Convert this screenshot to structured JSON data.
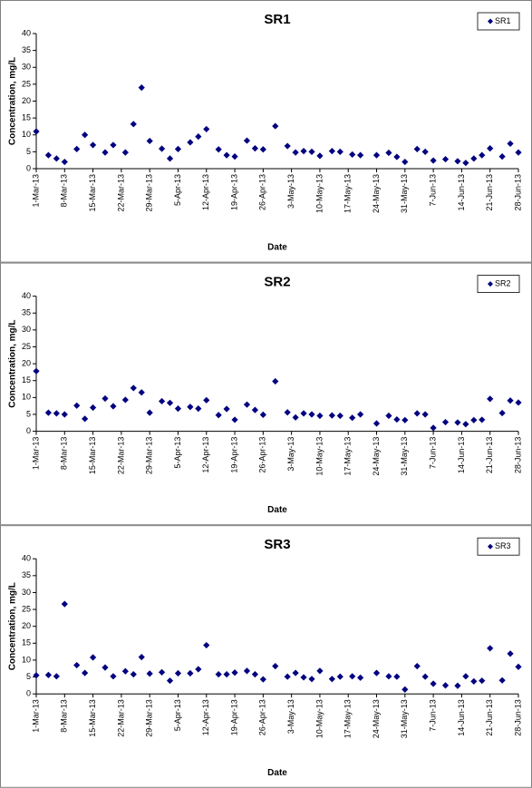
{
  "chart_data": [
    {
      "type": "scatter",
      "title": "SR1",
      "xlabel": "Date",
      "ylabel": "Concentration, mg/L",
      "legend": "upper right",
      "x": [
        "1-Mar-13",
        "4-Mar-13",
        "6-Mar-13",
        "8-Mar-13",
        "11-Mar-13",
        "13-Mar-13",
        "15-Mar-13",
        "18-Mar-13",
        "20-Mar-13",
        "23-Mar-13",
        "25-Mar-13",
        "27-Mar-13",
        "29-Mar-13",
        "1-Apr-13",
        "3-Apr-13",
        "5-Apr-13",
        "8-Apr-13",
        "10-Apr-13",
        "12-Apr-13",
        "15-Apr-13",
        "17-Apr-13",
        "19-Apr-13",
        "22-Apr-13",
        "24-Apr-13",
        "26-Apr-13",
        "29-Apr-13",
        "2-May-13",
        "4-May-13",
        "6-May-13",
        "8-May-13",
        "10-May-13",
        "13-May-13",
        "15-May-13",
        "18-May-13",
        "20-May-13",
        "24-May-13",
        "27-May-13",
        "29-May-13",
        "31-May-13",
        "3-Jun-13",
        "5-Jun-13",
        "7-Jun-13",
        "10-Jun-13",
        "13-Jun-13",
        "15-Jun-13",
        "17-Jun-13",
        "19-Jun-13",
        "21-Jun-13",
        "24-Jun-13",
        "26-Jun-13",
        "28-Jun-13"
      ],
      "series": [
        {
          "name": "SR1",
          "color": "#000080",
          "values": [
            11,
            4,
            3,
            2,
            5.8,
            10,
            7,
            4.8,
            7,
            4.8,
            13.2,
            24,
            8.2,
            5.9,
            3,
            5.8,
            7.8,
            9.5,
            11.7,
            5.7,
            4,
            3.6,
            8.3,
            6,
            5.7,
            12.6,
            6.7,
            4.8,
            5.2,
            5,
            3.8,
            5.2,
            5,
            4.2,
            4,
            4,
            4.7,
            3.5,
            2,
            5.8,
            5,
            2.4,
            2.8,
            2.2,
            1.7,
            3,
            4,
            6,
            3.6,
            7.4,
            4.8
          ]
        }
      ],
      "xlim": [
        "1-Mar-13",
        "28-Jun-13"
      ],
      "xticks": [
        "1-Mar-13",
        "8-Mar-13",
        "15-Mar-13",
        "22-Mar-13",
        "29-Mar-13",
        "5-Apr-13",
        "12-Apr-13",
        "19-Apr-13",
        "26-Apr-13",
        "3-May-13",
        "10-May-13",
        "17-May-13",
        "24-May-13",
        "31-May-13",
        "7-Jun-13",
        "14-Jun-13",
        "21-Jun-13",
        "28-Jun-13"
      ],
      "ylim": [
        0,
        40
      ],
      "yticks": [
        0,
        5,
        10,
        15,
        20,
        25,
        30,
        35,
        40
      ]
    },
    {
      "type": "scatter",
      "title": "SR2",
      "xlabel": "Date",
      "ylabel": "Concentration, mg/L",
      "legend": "upper right",
      "x": [
        "1-Mar-13",
        "4-Mar-13",
        "6-Mar-13",
        "8-Mar-13",
        "11-Mar-13",
        "13-Mar-13",
        "15-Mar-13",
        "18-Mar-13",
        "20-Mar-13",
        "23-Mar-13",
        "25-Mar-13",
        "27-Mar-13",
        "29-Mar-13",
        "1-Apr-13",
        "3-Apr-13",
        "5-Apr-13",
        "8-Apr-13",
        "10-Apr-13",
        "12-Apr-13",
        "15-Apr-13",
        "17-Apr-13",
        "19-Apr-13",
        "22-Apr-13",
        "24-Apr-13",
        "26-Apr-13",
        "29-Apr-13",
        "2-May-13",
        "4-May-13",
        "6-May-13",
        "8-May-13",
        "10-May-13",
        "13-May-13",
        "15-May-13",
        "18-May-13",
        "20-May-13",
        "24-May-13",
        "27-May-13",
        "29-May-13",
        "31-May-13",
        "3-Jun-13",
        "5-Jun-13",
        "7-Jun-13",
        "10-Jun-13",
        "13-Jun-13",
        "15-Jun-13",
        "17-Jun-13",
        "19-Jun-13",
        "21-Jun-13",
        "24-Jun-13",
        "26-Jun-13",
        "28-Jun-13"
      ],
      "series": [
        {
          "name": "SR2",
          "color": "#000080",
          "values": [
            17.8,
            5.5,
            5.3,
            5,
            7.6,
            3.7,
            7,
            9.7,
            7.4,
            9.3,
            12.8,
            11.5,
            5.5,
            8.9,
            8.4,
            6.7,
            7.2,
            6.7,
            9.2,
            4.8,
            6.6,
            3.4,
            7.9,
            6.3,
            4.9,
            14.8,
            5.6,
            4.1,
            5.3,
            5,
            4.6,
            4.7,
            4.6,
            4,
            5,
            2.3,
            4.6,
            3.5,
            3.3,
            5.3,
            5,
            1,
            2.7,
            2.6,
            2.1,
            3.3,
            3.4,
            9.6,
            5.4,
            9.1,
            8.5
          ]
        }
      ],
      "xlim": [
        "1-Mar-13",
        "28-Jun-13"
      ],
      "xticks": [
        "1-Mar-13",
        "8-Mar-13",
        "15-Mar-13",
        "22-Mar-13",
        "29-Mar-13",
        "5-Apr-13",
        "12-Apr-13",
        "19-Apr-13",
        "26-Apr-13",
        "3-May-13",
        "10-May-13",
        "17-May-13",
        "24-May-13",
        "31-May-13",
        "7-Jun-13",
        "14-Jun-13",
        "21-Jun-13",
        "28-Jun-13"
      ],
      "ylim": [
        0,
        40
      ],
      "yticks": [
        0,
        5,
        10,
        15,
        20,
        25,
        30,
        35,
        40
      ]
    },
    {
      "type": "scatter",
      "title": "SR3",
      "xlabel": "Date",
      "ylabel": "Concentration, mg/L",
      "legend": "upper right",
      "x": [
        "1-Mar-13",
        "4-Mar-13",
        "6-Mar-13",
        "8-Mar-13",
        "11-Mar-13",
        "13-Mar-13",
        "15-Mar-13",
        "18-Mar-13",
        "20-Mar-13",
        "23-Mar-13",
        "25-Mar-13",
        "27-Mar-13",
        "29-Mar-13",
        "1-Apr-13",
        "3-Apr-13",
        "5-Apr-13",
        "8-Apr-13",
        "10-Apr-13",
        "12-Apr-13",
        "15-Apr-13",
        "17-Apr-13",
        "19-Apr-13",
        "22-Apr-13",
        "24-Apr-13",
        "26-Apr-13",
        "29-Apr-13",
        "2-May-13",
        "4-May-13",
        "6-May-13",
        "8-May-13",
        "10-May-13",
        "13-May-13",
        "15-May-13",
        "18-May-13",
        "20-May-13",
        "24-May-13",
        "27-May-13",
        "29-May-13",
        "31-May-13",
        "3-Jun-13",
        "5-Jun-13",
        "7-Jun-13",
        "10-Jun-13",
        "13-Jun-13",
        "15-Jun-13",
        "17-Jun-13",
        "19-Jun-13",
        "21-Jun-13",
        "24-Jun-13",
        "26-Jun-13",
        "28-Jun-13"
      ],
      "series": [
        {
          "name": "SR3",
          "color": "#000080",
          "values": [
            5.5,
            5.6,
            5.2,
            26.6,
            8.5,
            6.2,
            10.8,
            7.8,
            5.2,
            6.7,
            5.8,
            10.9,
            6,
            6.4,
            3.9,
            6.1,
            6.1,
            7.3,
            14.4,
            5.8,
            5.8,
            6.3,
            6.8,
            5.8,
            4.3,
            8.2,
            5.1,
            6.2,
            4.9,
            4.4,
            6.8,
            4.4,
            5.1,
            5.2,
            4.8,
            6.2,
            5.2,
            5.1,
            1.3,
            8.2,
            5.1,
            3,
            2.5,
            2.4,
            5.2,
            3.7,
            3.9,
            13.5,
            4,
            11.9,
            8
          ]
        }
      ],
      "xlim": [
        "1-Mar-13",
        "28-Jun-13"
      ],
      "xticks": [
        "1-Mar-13",
        "8-Mar-13",
        "15-Mar-13",
        "22-Mar-13",
        "29-Mar-13",
        "5-Apr-13",
        "12-Apr-13",
        "19-Apr-13",
        "26-Apr-13",
        "3-May-13",
        "10-May-13",
        "17-May-13",
        "24-May-13",
        "31-May-13",
        "7-Jun-13",
        "14-Jun-13",
        "21-Jun-13",
        "28-Jun-13"
      ],
      "ylim": [
        0,
        40
      ],
      "yticks": [
        0,
        5,
        10,
        15,
        20,
        25,
        30,
        35,
        40
      ]
    }
  ]
}
